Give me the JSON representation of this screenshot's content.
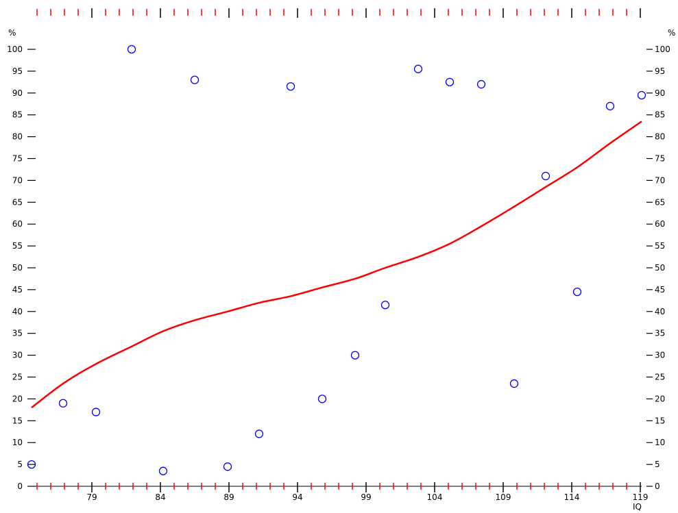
{
  "chart_data": {
    "type": "scatter",
    "title": "",
    "xlabel": "IQ",
    "ylabel": "%",
    "xlim": [
      74.6,
      119.1
    ],
    "ylim": [
      0,
      100
    ],
    "x_ticks": [
      79,
      84,
      89,
      94,
      99,
      104,
      109,
      114,
      119
    ],
    "y_ticks": [
      0,
      5,
      10,
      15,
      20,
      25,
      30,
      35,
      40,
      45,
      50,
      55,
      60,
      65,
      70,
      75,
      80,
      85,
      90,
      95,
      100
    ],
    "grid": false,
    "legend": "none",
    "colors": {
      "points": "#0000ff",
      "curve": "#ff0000",
      "axis": "#000000",
      "minor_ticks": "#ff0000"
    },
    "points": {
      "x": [
        74.6,
        76.9,
        79.3,
        81.9,
        84.2,
        86.5,
        88.9,
        91.2,
        93.5,
        95.8,
        98.2,
        100.4,
        102.8,
        105.1,
        107.4,
        109.8,
        112.1,
        114.4,
        116.8,
        119.1
      ],
      "y": [
        5,
        19,
        17,
        100,
        3.5,
        93,
        4.5,
        12,
        91.5,
        20,
        30,
        41.5,
        95.5,
        92.5,
        92,
        23.5,
        71,
        44.5,
        87,
        89.5
      ]
    },
    "trend_line": {
      "x": [
        74.6,
        76.9,
        79.3,
        81.9,
        84.2,
        86.5,
        88.9,
        91.2,
        93.5,
        95.8,
        98.2,
        100.4,
        102.8,
        105.1,
        107.4,
        109.8,
        112.1,
        114.4,
        116.8,
        119.1
      ],
      "y": [
        18,
        23.5,
        28,
        32,
        35.5,
        38,
        40,
        42,
        43.5,
        45.5,
        47.5,
        50,
        52.5,
        55.5,
        59.5,
        64,
        68.5,
        73,
        78.5,
        83.5
      ]
    }
  }
}
